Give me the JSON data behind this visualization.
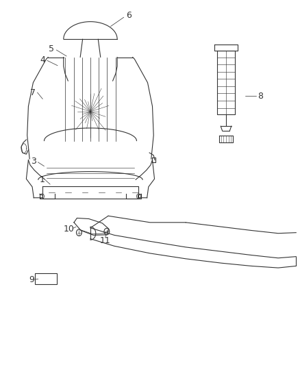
{
  "background_color": "#ffffff",
  "fig_width": 4.38,
  "fig_height": 5.33,
  "dpi": 100,
  "line_color": "#333333",
  "label_fontsize": 9
}
